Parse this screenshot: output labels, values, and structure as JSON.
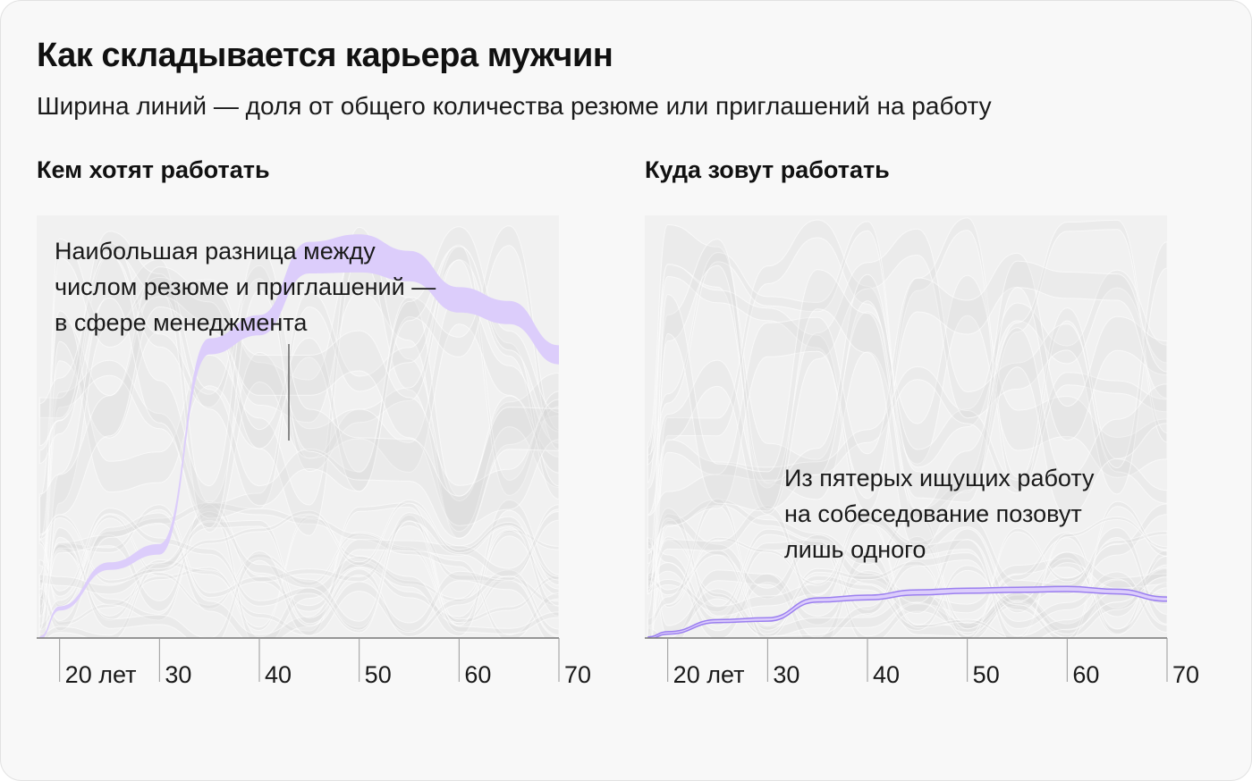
{
  "title": "Как складывается карьера мужчин",
  "subtitle": "Ширина линий — доля от общего количества резюме или приглашений на работу",
  "colors": {
    "background": "#f8f8f8",
    "plot_bg": "#f1f1f1",
    "flow_gray": "#d0d0d0",
    "highlight_fill": "#dccdfb",
    "highlight_stroke": "#9b7ff0"
  },
  "annotations": {
    "left": [
      "Наибольшая разница между",
      "числом резюме и приглашений —",
      "в сфере менеджмента"
    ],
    "right": [
      "Из пятерых ищущих работу",
      "на собеседование позовут",
      "лишь одного"
    ]
  },
  "chart_data": [
    {
      "type": "area",
      "title": "Кем хотят работать",
      "x_tick_labels": [
        "20 лет",
        "30",
        "40",
        "50",
        "60",
        "70"
      ],
      "x": [
        18,
        20,
        25,
        30,
        35,
        40,
        45,
        50,
        55,
        60,
        65,
        70
      ],
      "xlim": [
        17.7,
        70
      ],
      "highlight": {
        "category": "менеджмент",
        "level": [
          0,
          0.07,
          0.17,
          0.21,
          0.69,
          0.74,
          0.9,
          0.91,
          0.88,
          0.8,
          0.77,
          0.67
        ],
        "share": [
          0.008,
          0.01,
          0.018,
          0.025,
          0.038,
          0.048,
          0.075,
          0.09,
          0.072,
          0.06,
          0.055,
          0.045
        ]
      },
      "background_flows": 22
    },
    {
      "type": "area",
      "title": "Куда зовут работать",
      "x_tick_labels": [
        "20 лет",
        "30",
        "40",
        "50",
        "60",
        "70"
      ],
      "x": [
        18,
        20,
        25,
        30,
        35,
        40,
        45,
        50,
        55,
        60,
        65,
        70
      ],
      "xlim": [
        17.7,
        70
      ],
      "highlight": {
        "category": "менеджмент",
        "level": [
          0,
          0.012,
          0.04,
          0.044,
          0.09,
          0.096,
          0.108,
          0.112,
          0.114,
          0.116,
          0.11,
          0.092
        ],
        "share": [
          0.005,
          0.006,
          0.007,
          0.008,
          0.01,
          0.011,
          0.012,
          0.012,
          0.012,
          0.012,
          0.011,
          0.01
        ]
      },
      "background_flows": 22
    }
  ]
}
